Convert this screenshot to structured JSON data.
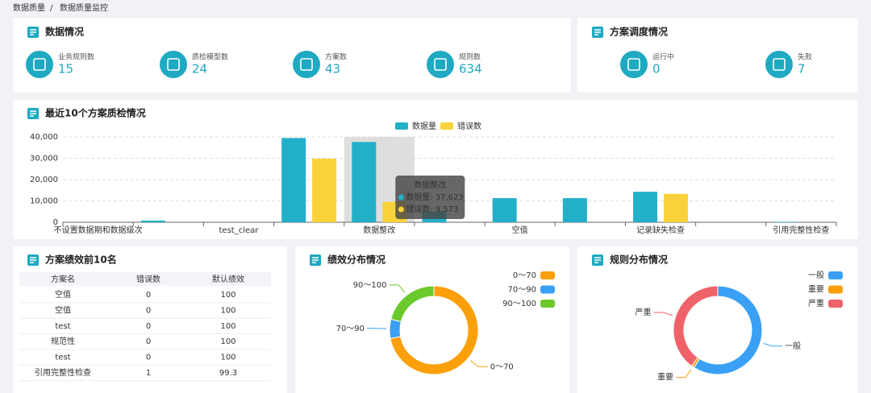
{
  "breadcrumb": {
    "items": [
      "数据质量",
      "数据质量监控"
    ],
    "separator": "/"
  },
  "data_overview": {
    "title": "数据情况",
    "items": [
      {
        "label": "业务规则数",
        "value": 15
      },
      {
        "label": "质检模型数",
        "value": 24
      },
      {
        "label": "方案数",
        "value": 43
      },
      {
        "label": "规则数",
        "value": 634
      }
    ]
  },
  "schedule": {
    "title": "方案调度情况",
    "items": [
      {
        "label": "运行中",
        "value": 0
      },
      {
        "label": "失败",
        "value": 7
      }
    ]
  },
  "chart_data": [
    {
      "type": "bar",
      "title": "最近10个方案质检情况",
      "categories": [
        "不设置数据期和数据级次",
        null,
        "test_clear",
        null,
        "数据整改",
        null,
        "空值",
        null,
        "记录缺失检查",
        null,
        "引用完整性检查"
      ],
      "series": [
        {
          "name": "数据量",
          "color": "#22b0c8",
          "values": [
            0,
            800,
            0,
            39500,
            37623,
            5000,
            11300,
            11300,
            14300,
            0,
            200
          ]
        },
        {
          "name": "错误数",
          "color": "#f8d23a",
          "values": [
            0,
            0,
            0,
            29800,
            9573,
            0,
            0,
            0,
            13300,
            0,
            0
          ]
        }
      ],
      "ylim": [
        0,
        40000
      ],
      "yticks": [
        0,
        {
          "value": 10000,
          "label": "10,000"
        },
        {
          "value": 20000,
          "label": "20,000"
        },
        {
          "value": 30000,
          "label": "30,000"
        },
        {
          "value": 40000,
          "label": "40,000"
        }
      ],
      "grid": true,
      "legend": "top",
      "tooltip": {
        "title": "数据整改",
        "items": [
          "数据量: 37,623",
          "错误数: 9,573"
        ]
      }
    },
    {
      "type": "donut",
      "title": "绩效分布情况",
      "categories": [
        "0～70",
        "70～90",
        "90～100"
      ],
      "values": [
        72,
        7,
        21
      ],
      "colors": [
        "#fb9f0a",
        "#3aa0f5",
        "#6cc92c"
      ],
      "legend": "top-right"
    },
    {
      "type": "donut",
      "title": "规则分布情况",
      "categories": [
        "一般",
        "重要",
        "严重"
      ],
      "values": [
        59,
        1,
        40
      ],
      "colors": [
        "#3aa0f5",
        "#fb9f0a",
        "#f0626a"
      ],
      "legend": "top-right"
    }
  ],
  "top_table": {
    "title": "方案绩效前10名",
    "columns": [
      "方案名",
      "错误数",
      "默认绩效"
    ],
    "rows": [
      [
        "空值",
        0,
        100
      ],
      [
        "空值",
        0,
        100
      ],
      [
        "test",
        0,
        100
      ],
      [
        "规范性",
        0,
        100
      ],
      [
        "test",
        0,
        100
      ],
      [
        "引用完整性检查",
        1,
        99.3
      ]
    ]
  }
}
